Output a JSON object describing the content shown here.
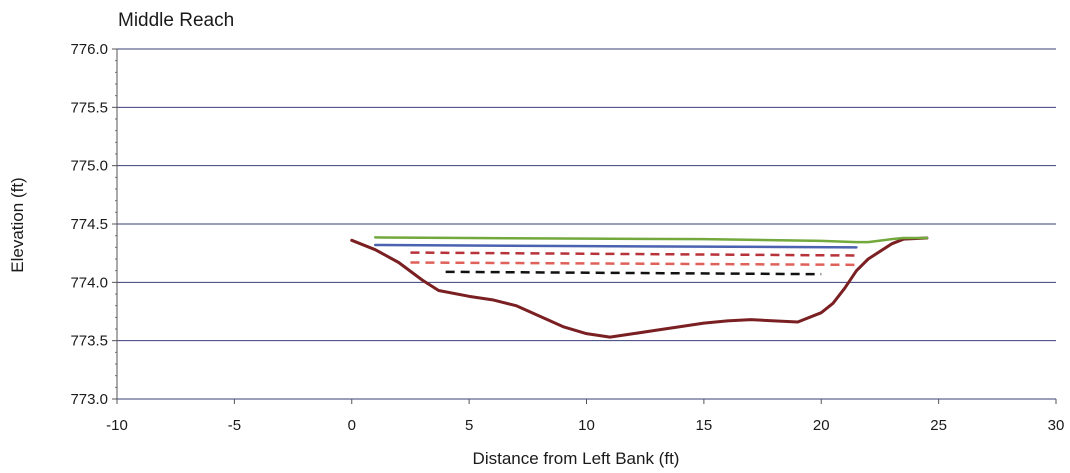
{
  "chart_data": {
    "type": "line",
    "title": "Middle Reach",
    "xlabel": "Distance from Left Bank (ft)",
    "ylabel": "Elevation (ft)",
    "xlim": [
      -10,
      30
    ],
    "ylim": [
      773.0,
      776.0
    ],
    "x_ticks": [
      "-10",
      "-5",
      "0",
      "5",
      "10",
      "15",
      "20",
      "25",
      "30"
    ],
    "y_ticks": [
      "773.0",
      "773.5",
      "774.0",
      "774.5",
      "775.0",
      "775.5",
      "776.0"
    ],
    "grid": "horizontal",
    "series": [
      {
        "color": "#7a1f22",
        "style": "solid",
        "points": [
          [
            0,
            774.36
          ],
          [
            1,
            774.28
          ],
          [
            2,
            774.17
          ],
          [
            3,
            774.02
          ],
          [
            3.7,
            773.93
          ],
          [
            5,
            773.88
          ],
          [
            6,
            773.85
          ],
          [
            7,
            773.8
          ],
          [
            8,
            773.71
          ],
          [
            9,
            773.62
          ],
          [
            10,
            773.56
          ],
          [
            11,
            773.53
          ],
          [
            12,
            773.56
          ],
          [
            13,
            773.59
          ],
          [
            14,
            773.62
          ],
          [
            15,
            773.65
          ],
          [
            16,
            773.67
          ],
          [
            17,
            773.68
          ],
          [
            18,
            773.67
          ],
          [
            19,
            773.66
          ],
          [
            20,
            773.74
          ],
          [
            20.5,
            773.82
          ],
          [
            21,
            773.95
          ],
          [
            21.5,
            774.1
          ],
          [
            22,
            774.2
          ],
          [
            23,
            774.33
          ],
          [
            23.5,
            774.37
          ],
          [
            24.5,
            774.38
          ]
        ]
      },
      {
        "color": "#72a83c",
        "style": "solid",
        "points": [
          [
            1,
            774.385
          ],
          [
            5,
            774.38
          ],
          [
            10,
            774.375
          ],
          [
            15,
            774.37
          ],
          [
            20,
            774.355
          ],
          [
            21.5,
            774.345
          ],
          [
            22,
            774.345
          ],
          [
            23,
            774.37
          ],
          [
            23.5,
            774.38
          ],
          [
            24.5,
            774.38
          ]
        ]
      },
      {
        "color": "#4a62b0",
        "style": "solid",
        "points": [
          [
            1,
            774.32
          ],
          [
            10,
            774.31
          ],
          [
            21.5,
            774.3
          ]
        ]
      },
      {
        "color": "#b8323a",
        "style": "dashed",
        "points": [
          [
            2.5,
            774.255
          ],
          [
            21.5,
            774.23
          ]
        ]
      },
      {
        "color": "#e0605a",
        "style": "dashed",
        "points": [
          [
            2.5,
            774.17
          ],
          [
            21.5,
            774.15
          ]
        ]
      },
      {
        "color": "#111111",
        "style": "dashed",
        "points": [
          [
            4,
            774.09
          ],
          [
            20,
            774.07
          ]
        ]
      }
    ]
  }
}
